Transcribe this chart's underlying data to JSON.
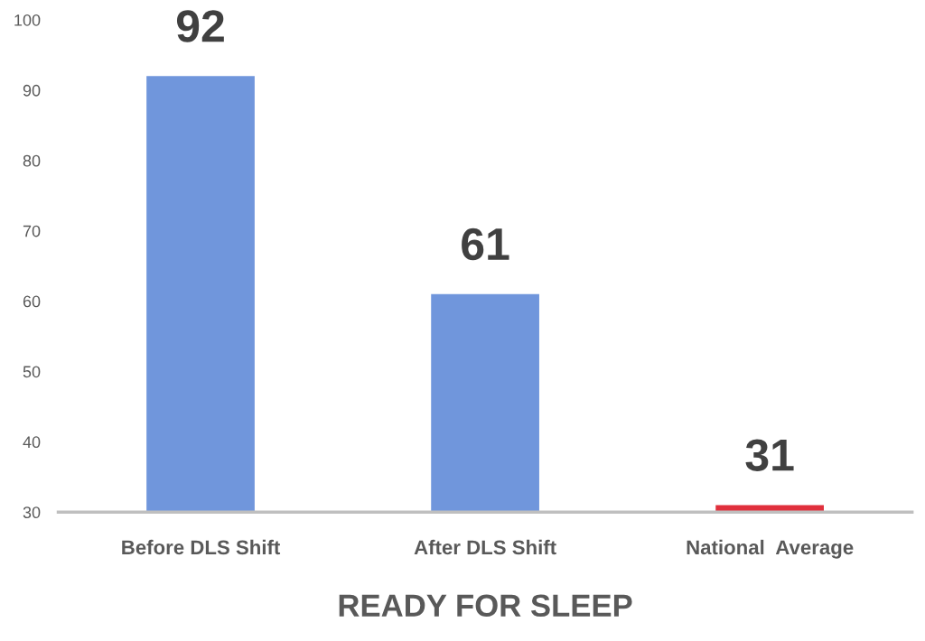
{
  "chart_data": {
    "type": "bar",
    "xlabel": "READY FOR SLEEP",
    "categories": [
      "Before DLS Shift",
      "After DLS Shift",
      "National  Average"
    ],
    "values": [
      92,
      61,
      31
    ],
    "colors": [
      "#7096dc",
      "#7096dc",
      "#e0303c"
    ],
    "ylim": [
      30,
      100
    ],
    "yticks": [
      30,
      40,
      50,
      60,
      70,
      80,
      90,
      100
    ],
    "grid": false,
    "legend": false,
    "data_labels": true
  }
}
